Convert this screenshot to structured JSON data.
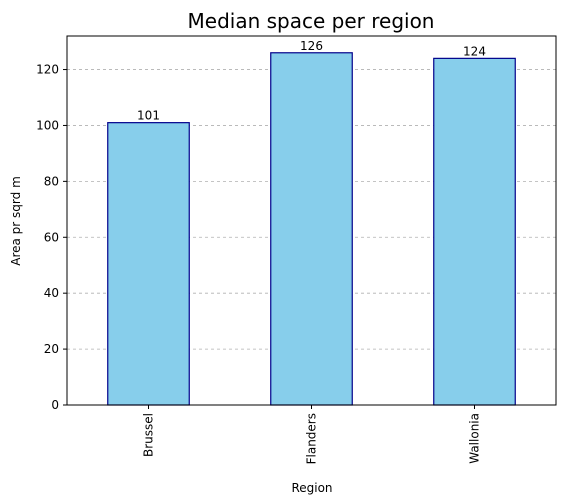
{
  "chart_data": {
    "type": "bar",
    "title": "Median space per region",
    "xlabel": "Region",
    "ylabel": "Area pr sqrd m",
    "categories": [
      "Brussel",
      "Flanders",
      "Wallonia"
    ],
    "values": [
      101,
      126,
      124
    ],
    "data_labels": [
      "101",
      "126",
      "124"
    ],
    "ylim": [
      0,
      132
    ],
    "yticks": [
      0,
      20,
      40,
      60,
      80,
      100,
      120
    ],
    "grid": "y-dashed",
    "colors": {
      "bar_fill": "#87CEEB",
      "bar_edge": "#00008B",
      "grid": "#b0b0b0"
    }
  }
}
